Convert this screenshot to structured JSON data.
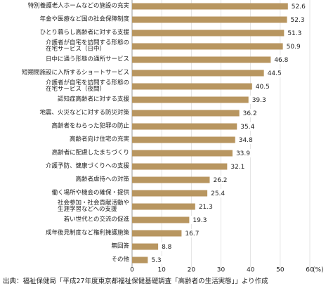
{
  "chart_data": {
    "type": "barh",
    "categories": [
      "特別養護老人ホームなどの施設の充実",
      "年金や医療など国の社会保障制度",
      "ひとり暮らし高齢者に対する支援",
      "介護者が自宅を訪問する形態の\n在宅サービス（日中）",
      "日中に通う形態の通所サービス",
      "短期間施設に入所するショートサービス",
      "介護者が自宅を訪問する形態の\n在宅サービス（夜間）",
      "認知症高齢者に対する支援",
      "地震、火災などに対する防災対策",
      "高齢者をねらった犯罪の防止",
      "高齢者向け住宅の充実",
      "高齢者に配慮したまちづくり",
      "介護予防、健康づくりへの支援",
      "高齢者虐待への対策",
      "働く場所や機会の確保・提供",
      "社会参加・社会貢献活動や\n生涯学習などへの支援",
      "若い世代との交流の促進",
      "成年後見制度など権利擁護施策",
      "無回答",
      "その他"
    ],
    "values": [
      52.6,
      52.3,
      51.3,
      50.9,
      46.8,
      44.5,
      40.5,
      39.3,
      36.2,
      35.4,
      34.8,
      33.9,
      32.1,
      26.2,
      25.4,
      21.3,
      19.3,
      16.7,
      8.8,
      5.3
    ],
    "color": "#b89660",
    "xlim": [
      0,
      60
    ],
    "xticks": [
      0,
      10,
      20,
      30,
      40,
      50,
      60
    ],
    "xlabel": "(%)",
    "grid": true,
    "source": "出典：福祉保健局「平成27年度東京都福祉保健基礎調査「高齢者の生活実態」」より作成"
  }
}
